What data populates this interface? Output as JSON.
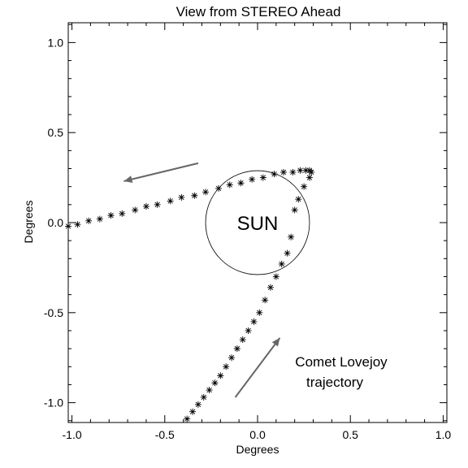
{
  "chart_data": {
    "type": "scatter",
    "title": "View from STEREO Ahead",
    "xlabel": "Degrees",
    "ylabel": "Degrees",
    "xlim": [
      -1.02,
      1.02
    ],
    "ylim": [
      -1.11,
      1.11
    ],
    "xticks": [
      -1.0,
      -0.5,
      0.0,
      0.5,
      1.0
    ],
    "xtick_labels": [
      "-1.0",
      "-0.5",
      "0.0",
      "0.5",
      "1.0"
    ],
    "yticks": [
      -1.0,
      -0.5,
      0.0,
      0.5,
      1.0
    ],
    "ytick_labels": [
      "-1.0",
      "-0.5",
      "0.0",
      "0.5",
      "1.0"
    ],
    "grid": false,
    "marker": "asterisk",
    "series": [
      {
        "x": [
          -0.38,
          -0.35,
          -0.32,
          -0.29,
          -0.26,
          -0.23,
          -0.2,
          -0.17,
          -0.14,
          -0.11,
          -0.08,
          -0.05,
          -0.02,
          0.01,
          0.04,
          0.07,
          0.1,
          0.13,
          0.16,
          0.18,
          0.2,
          0.22,
          0.25,
          0.28,
          0.29,
          0.28,
          0.26,
          0.23,
          0.19,
          0.14,
          0.09,
          0.03,
          -0.03,
          -0.09,
          -0.15,
          -0.21,
          -0.28,
          -0.34,
          -0.41,
          -0.47,
          -0.54,
          -0.6,
          -0.66,
          -0.73,
          -0.79,
          -0.85,
          -0.91,
          -0.97,
          -1.02
        ],
        "y": [
          -1.09,
          -1.05,
          -1.01,
          -0.97,
          -0.93,
          -0.89,
          -0.85,
          -0.8,
          -0.75,
          -0.7,
          -0.65,
          -0.6,
          -0.55,
          -0.5,
          -0.43,
          -0.36,
          -0.3,
          -0.23,
          -0.17,
          -0.08,
          0.07,
          0.13,
          0.2,
          0.25,
          0.28,
          0.29,
          0.29,
          0.29,
          0.28,
          0.28,
          0.27,
          0.25,
          0.24,
          0.22,
          0.21,
          0.19,
          0.17,
          0.15,
          0.14,
          0.12,
          0.1,
          0.09,
          0.07,
          0.05,
          0.04,
          0.02,
          0.01,
          -0.01,
          -0.02
        ]
      }
    ],
    "sun": {
      "label": "SUN",
      "center": [
        0.0,
        0.0
      ],
      "radius": 0.28
    },
    "annotation": {
      "line1": "Comet Lovejoy",
      "line2": "trajectory"
    },
    "arrows": [
      {
        "from": [
          -0.12,
          -0.97
        ],
        "to": [
          0.12,
          -0.64
        ]
      },
      {
        "from": [
          -0.32,
          0.33
        ],
        "to": [
          -0.72,
          0.23
        ]
      }
    ]
  }
}
